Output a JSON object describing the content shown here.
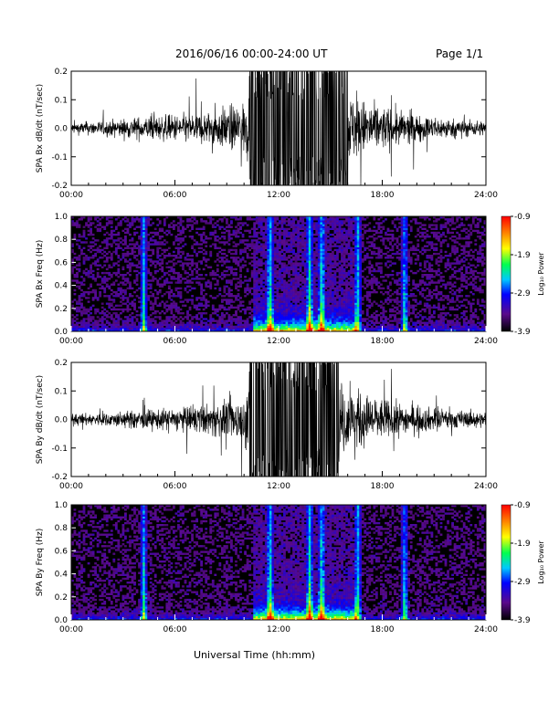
{
  "header": {
    "title": "2016/06/16  00:00-24:00 UT",
    "page": "Page 1/1"
  },
  "footer": {
    "xlabel": "Universal Time (hh:mm)"
  },
  "colorbar": {
    "label": "Log₁₀ Power",
    "ticks": [
      "-0.9",
      "-1.9",
      "-2.9",
      "-3.9"
    ],
    "range": [
      -3.9,
      -0.9
    ],
    "colors": [
      "#000000",
      "#5a0a8c",
      "#0000ff",
      "#00c8ff",
      "#00ff50",
      "#ffff00",
      "#ff7f00",
      "#ff0000"
    ]
  },
  "chart_data": [
    {
      "type": "line",
      "ylabel": "SPA Bx dB/dt (nT/sec)",
      "xlim": [
        0,
        24
      ],
      "ylim": [
        -0.2,
        0.2
      ],
      "xticks": [
        "00:00",
        "06:00",
        "12:00",
        "18:00",
        "24:00"
      ],
      "yticks": [
        "0.2",
        "0.1",
        "0.0",
        "-0.1",
        "-0.2"
      ],
      "x_hours": [
        0,
        2,
        4,
        6,
        8,
        10,
        10.3,
        11,
        12,
        13,
        14,
        15,
        16,
        16.5,
        18,
        20,
        22,
        24
      ],
      "envelope": [
        0.03,
        0.04,
        0.06,
        0.07,
        0.09,
        0.14,
        0.2,
        0.2,
        0.2,
        0.2,
        0.2,
        0.2,
        0.2,
        0.16,
        0.12,
        0.07,
        0.05,
        0.04
      ],
      "color": "#000000"
    },
    {
      "type": "heatmap",
      "ylabel": "SPA Bx Freq (Hz)",
      "xlim": [
        0,
        24
      ],
      "ylim": [
        0,
        1
      ],
      "xticks": [
        "00:00",
        "06:00",
        "12:00",
        "18:00",
        "24:00"
      ],
      "yticks": [
        "1.0",
        "0.8",
        "0.6",
        "0.4",
        "0.2",
        "0.0"
      ],
      "enhanced_bands_hours": [
        4.2,
        11.5,
        13.8,
        14.5,
        16.6,
        19.3
      ],
      "peak_region_hours": [
        10.5,
        16.5
      ],
      "zlim": [
        -3.9,
        -0.9
      ]
    },
    {
      "type": "line",
      "ylabel": "SPA By dB/dt (nT/sec)",
      "xlim": [
        0,
        24
      ],
      "ylim": [
        -0.2,
        0.2
      ],
      "xticks": [
        "00:00",
        "06:00",
        "12:00",
        "18:00",
        "24:00"
      ],
      "yticks": [
        "0.2",
        "0.1",
        "0.0",
        "-0.1",
        "-0.2"
      ],
      "x_hours": [
        0,
        2,
        4,
        6,
        8,
        10,
        10.3,
        11,
        12,
        13,
        14,
        15,
        15.5,
        16.5,
        18,
        20,
        22,
        24
      ],
      "envelope": [
        0.03,
        0.035,
        0.05,
        0.06,
        0.08,
        0.12,
        0.2,
        0.2,
        0.2,
        0.2,
        0.2,
        0.2,
        0.2,
        0.15,
        0.11,
        0.07,
        0.05,
        0.04
      ],
      "color": "#000000"
    },
    {
      "type": "heatmap",
      "ylabel": "SPA By Freq (Hz)",
      "xlim": [
        0,
        24
      ],
      "ylim": [
        0,
        1
      ],
      "xticks": [
        "00:00",
        "06:00",
        "12:00",
        "18:00",
        "24:00"
      ],
      "yticks": [
        "1.0",
        "0.8",
        "0.6",
        "0.4",
        "0.2",
        "0.0"
      ],
      "enhanced_bands_hours": [
        4.2,
        11.5,
        13.8,
        14.5,
        16.6,
        19.3
      ],
      "peak_region_hours": [
        10.5,
        16.5
      ],
      "zlim": [
        -3.9,
        -0.9
      ]
    }
  ]
}
